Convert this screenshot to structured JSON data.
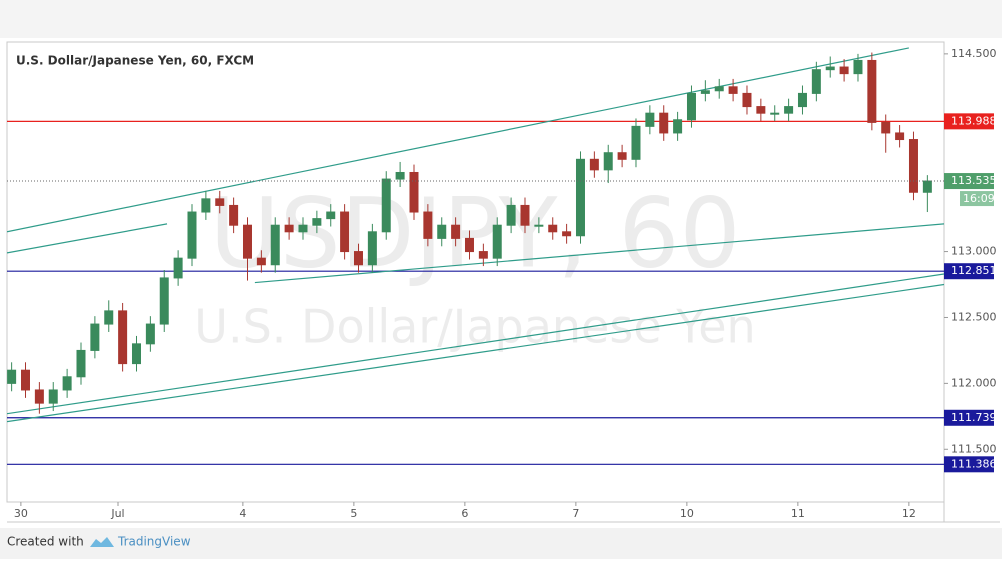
{
  "chart_data": {
    "type": "candlestick",
    "title": "U.S. Dollar/Japanese Yen, 60, FXCM",
    "watermark": [
      "USDJPY, 60",
      "U.S. Dollar/Japanese Yen"
    ],
    "x": [
      1,
      4,
      7,
      10,
      13,
      16,
      19,
      22,
      25,
      28,
      31,
      34,
      37,
      40,
      43,
      46,
      49,
      52,
      55,
      58,
      61,
      64,
      67,
      70,
      73,
      76,
      79,
      82,
      85,
      88,
      91,
      94,
      97,
      100,
      103,
      106,
      109,
      112,
      115,
      118,
      121,
      124,
      127,
      130,
      133,
      136,
      139,
      142,
      145,
      148,
      151,
      154,
      157,
      160,
      163,
      166,
      169,
      172,
      175,
      178,
      181,
      184,
      187,
      190,
      193,
      196,
      199
    ],
    "open": [
      112.0,
      112.1,
      111.95,
      111.85,
      111.95,
      112.05,
      112.25,
      112.45,
      112.55,
      112.15,
      112.3,
      112.45,
      112.8,
      112.95,
      113.3,
      113.4,
      113.35,
      113.2,
      112.95,
      112.9,
      113.2,
      113.15,
      113.2,
      113.25,
      113.3,
      113.0,
      112.9,
      113.15,
      113.55,
      113.6,
      113.3,
      113.1,
      113.2,
      113.1,
      113.0,
      112.95,
      113.2,
      113.35,
      113.2,
      113.2,
      113.15,
      113.12,
      113.7,
      113.62,
      113.75,
      113.7,
      113.95,
      114.05,
      113.9,
      114.0,
      114.2,
      114.22,
      114.25,
      114.2,
      114.1,
      114.05,
      114.05,
      114.1,
      114.2,
      114.38,
      114.4,
      114.35,
      114.45,
      113.98,
      113.9,
      113.85,
      113.45
    ],
    "high": [
      112.16,
      112.16,
      112.01,
      112.01,
      112.11,
      112.31,
      112.51,
      112.63,
      112.61,
      112.36,
      112.51,
      112.86,
      113.01,
      113.36,
      113.46,
      113.46,
      113.41,
      113.26,
      113.01,
      113.26,
      113.26,
      113.26,
      113.31,
      113.36,
      113.36,
      113.06,
      113.21,
      113.61,
      113.68,
      113.66,
      113.36,
      113.26,
      113.26,
      113.16,
      113.06,
      113.26,
      113.41,
      113.41,
      113.26,
      113.26,
      113.21,
      113.76,
      113.76,
      113.81,
      113.81,
      114.01,
      114.11,
      114.11,
      114.06,
      114.26,
      114.3,
      114.31,
      114.31,
      114.26,
      114.16,
      114.11,
      114.16,
      114.26,
      114.44,
      114.48,
      114.46,
      114.5,
      114.51,
      114.04,
      113.96,
      113.91,
      113.58
    ],
    "low": [
      111.94,
      111.89,
      111.77,
      111.79,
      111.89,
      111.99,
      112.19,
      112.39,
      112.09,
      112.09,
      112.24,
      112.39,
      112.74,
      112.89,
      113.24,
      113.29,
      113.14,
      112.78,
      112.84,
      112.84,
      113.09,
      113.09,
      113.14,
      113.19,
      112.94,
      112.84,
      112.84,
      113.09,
      113.49,
      113.24,
      113.04,
      113.04,
      113.04,
      112.94,
      112.89,
      112.89,
      113.14,
      113.14,
      113.14,
      113.09,
      113.06,
      113.06,
      113.56,
      113.52,
      113.64,
      113.64,
      113.89,
      113.84,
      113.84,
      113.94,
      114.14,
      114.16,
      114.14,
      114.04,
      113.99,
      113.99,
      113.99,
      114.04,
      114.14,
      114.32,
      114.29,
      114.29,
      113.92,
      113.75,
      113.79,
      113.39,
      113.3
    ],
    "close": [
      112.1,
      111.95,
      111.85,
      111.95,
      112.05,
      112.25,
      112.45,
      112.55,
      112.15,
      112.3,
      112.45,
      112.8,
      112.95,
      113.3,
      113.4,
      113.35,
      113.2,
      112.95,
      112.9,
      113.2,
      113.15,
      113.2,
      113.25,
      113.3,
      113.0,
      112.9,
      113.15,
      113.55,
      113.6,
      113.3,
      113.1,
      113.2,
      113.1,
      113.0,
      112.95,
      113.2,
      113.35,
      113.2,
      113.2,
      113.15,
      113.12,
      113.7,
      113.62,
      113.75,
      113.7,
      113.95,
      114.05,
      113.9,
      114.0,
      114.2,
      114.22,
      114.25,
      114.2,
      114.1,
      114.05,
      114.05,
      114.1,
      114.2,
      114.38,
      114.4,
      114.35,
      114.45,
      113.98,
      113.9,
      113.85,
      113.45,
      113.535
    ],
    "up_color": "#3a8a5c",
    "down_color": "#a8362f",
    "xlim": [
      0,
      202.6
    ],
    "xticks": [
      {
        "value": 3,
        "label": "30"
      },
      {
        "value": 24,
        "label": "Jul"
      },
      {
        "value": 51,
        "label": "4"
      },
      {
        "value": 75,
        "label": "5"
      },
      {
        "value": 99,
        "label": "6"
      },
      {
        "value": 123,
        "label": "7"
      },
      {
        "value": 147,
        "label": "10"
      },
      {
        "value": 171,
        "label": "11"
      },
      {
        "value": 195,
        "label": "12"
      }
    ],
    "ylim": [
      111.1,
      114.59
    ],
    "yticks": [
      {
        "value": 114.5,
        "label": "114.500"
      },
      {
        "value": 113,
        "label": "113.000"
      },
      {
        "value": 112.5,
        "label": "112.500"
      },
      {
        "value": 112,
        "label": "112.000"
      },
      {
        "value": 111.5,
        "label": "111.500"
      }
    ],
    "levels": [
      {
        "value": 113.988,
        "color": "#e8211e"
      },
      {
        "value": 112.851,
        "color": "#1a1a9c"
      },
      {
        "value": 111.739,
        "color": "#1a1a9c"
      },
      {
        "value": 111.386,
        "color": "#1a1a9c"
      }
    ],
    "last_price": 113.535,
    "last_price_color": "#4f9e6a",
    "countdown": "16:09",
    "trendline_color": "#2f9c8a",
    "trendlines": [
      {
        "x": [
          0,
          195
        ],
        "y": [
          113.15,
          114.545
        ]
      },
      {
        "x": [
          0,
          34.6
        ],
        "y": [
          112.99,
          113.21
        ]
      },
      {
        "x": [
          53.6,
          202.6
        ],
        "y": [
          112.765,
          113.21
        ]
      },
      {
        "x": [
          0,
          202.6
        ],
        "y": [
          111.77,
          112.83
        ]
      },
      {
        "x": [
          0,
          202.6
        ],
        "y": [
          111.71,
          112.75
        ]
      }
    ]
  },
  "footer": {
    "created": "Created with",
    "brand": "TradingView"
  }
}
